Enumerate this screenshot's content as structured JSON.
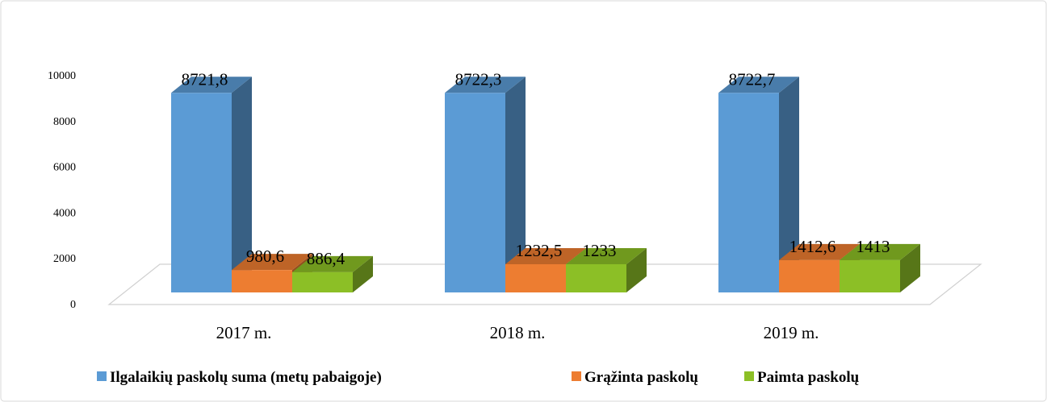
{
  "chart_data": {
    "type": "bar3d",
    "categories": [
      "2017 m.",
      "2018 m.",
      "2019 m."
    ],
    "series": [
      {
        "name": "Ilgalaikių paskolų suma (metų pabaigoje)",
        "color": "#5b9bd5",
        "values": [
          8721.8,
          8722.3,
          8722.7
        ],
        "value_labels": [
          "8721,8",
          "8722,3",
          "8722,7"
        ]
      },
      {
        "name": "Grąžinta paskolų",
        "color": "#ed7d31",
        "values": [
          980.6,
          1232.5,
          1412.6
        ],
        "value_labels": [
          "980,6",
          "1232,5",
          "1412,6"
        ]
      },
      {
        "name": "Paimta paskolų",
        "color": "#8cbf26",
        "values": [
          886.4,
          1233,
          1413
        ],
        "value_labels": [
          "886,4",
          "1233",
          "1413"
        ]
      }
    ],
    "ylim": [
      0,
      10000
    ],
    "yticks": [
      0,
      2000,
      4000,
      6000,
      8000,
      10000
    ],
    "legend": "bottom"
  }
}
